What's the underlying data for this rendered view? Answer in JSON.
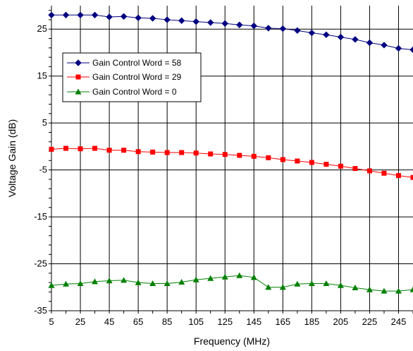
{
  "chart_data": {
    "type": "line",
    "title": "",
    "xlabel": "Frequency (MHz)",
    "ylabel": "Voltage Gain (dB)",
    "xlim": [
      5,
      255
    ],
    "ylim": [
      -35,
      30
    ],
    "x_ticks": [
      5,
      25,
      45,
      65,
      85,
      105,
      125,
      145,
      165,
      185,
      205,
      225,
      245
    ],
    "x_tick_labels": [
      "5",
      "25",
      "45",
      "65",
      "85",
      "105",
      "125",
      "145",
      "165",
      "185",
      "205",
      "225",
      "245"
    ],
    "y_ticks": [
      -35,
      -25,
      -15,
      -5,
      5,
      15,
      25
    ],
    "y_tick_labels": [
      "-35",
      "-25",
      "-15",
      "-5",
      "5",
      "15",
      "25"
    ],
    "grid": true,
    "legend_position": "upper-left",
    "x": [
      5,
      15,
      25,
      35,
      45,
      55,
      65,
      75,
      85,
      95,
      105,
      115,
      125,
      135,
      145,
      155,
      165,
      175,
      185,
      195,
      205,
      215,
      225,
      235,
      245,
      255
    ],
    "series": [
      {
        "name": "Gain Control Word = 58",
        "color": "#000080",
        "marker": "diamond",
        "values": [
          28.0,
          28.0,
          28.0,
          28.0,
          27.6,
          27.7,
          27.4,
          27.3,
          27.0,
          26.8,
          26.6,
          26.4,
          26.2,
          25.9,
          25.7,
          25.2,
          25.1,
          24.7,
          24.2,
          23.8,
          23.3,
          22.8,
          22.1,
          21.6,
          20.9,
          20.6
        ]
      },
      {
        "name": "Gain Control Word = 29",
        "color": "#ff0000",
        "marker": "square",
        "values": [
          -0.6,
          -0.4,
          -0.5,
          -0.4,
          -0.8,
          -0.8,
          -1.1,
          -1.2,
          -1.3,
          -1.3,
          -1.4,
          -1.6,
          -1.7,
          -1.9,
          -2.1,
          -2.4,
          -2.8,
          -3.1,
          -3.4,
          -3.8,
          -4.2,
          -4.7,
          -5.2,
          -5.7,
          -6.2,
          -6.6
        ]
      },
      {
        "name": "Gain Control Word = 0",
        "color": "#008000",
        "marker": "triangle",
        "values": [
          -29.6,
          -29.3,
          -29.2,
          -28.8,
          -28.6,
          -28.5,
          -29.0,
          -29.2,
          -29.2,
          -28.9,
          -28.4,
          -28.1,
          -27.8,
          -27.5,
          -27.9,
          -30.0,
          -30.0,
          -29.3,
          -29.2,
          -29.2,
          -29.6,
          -30.1,
          -30.5,
          -30.8,
          -30.8,
          -30.5
        ]
      }
    ]
  }
}
